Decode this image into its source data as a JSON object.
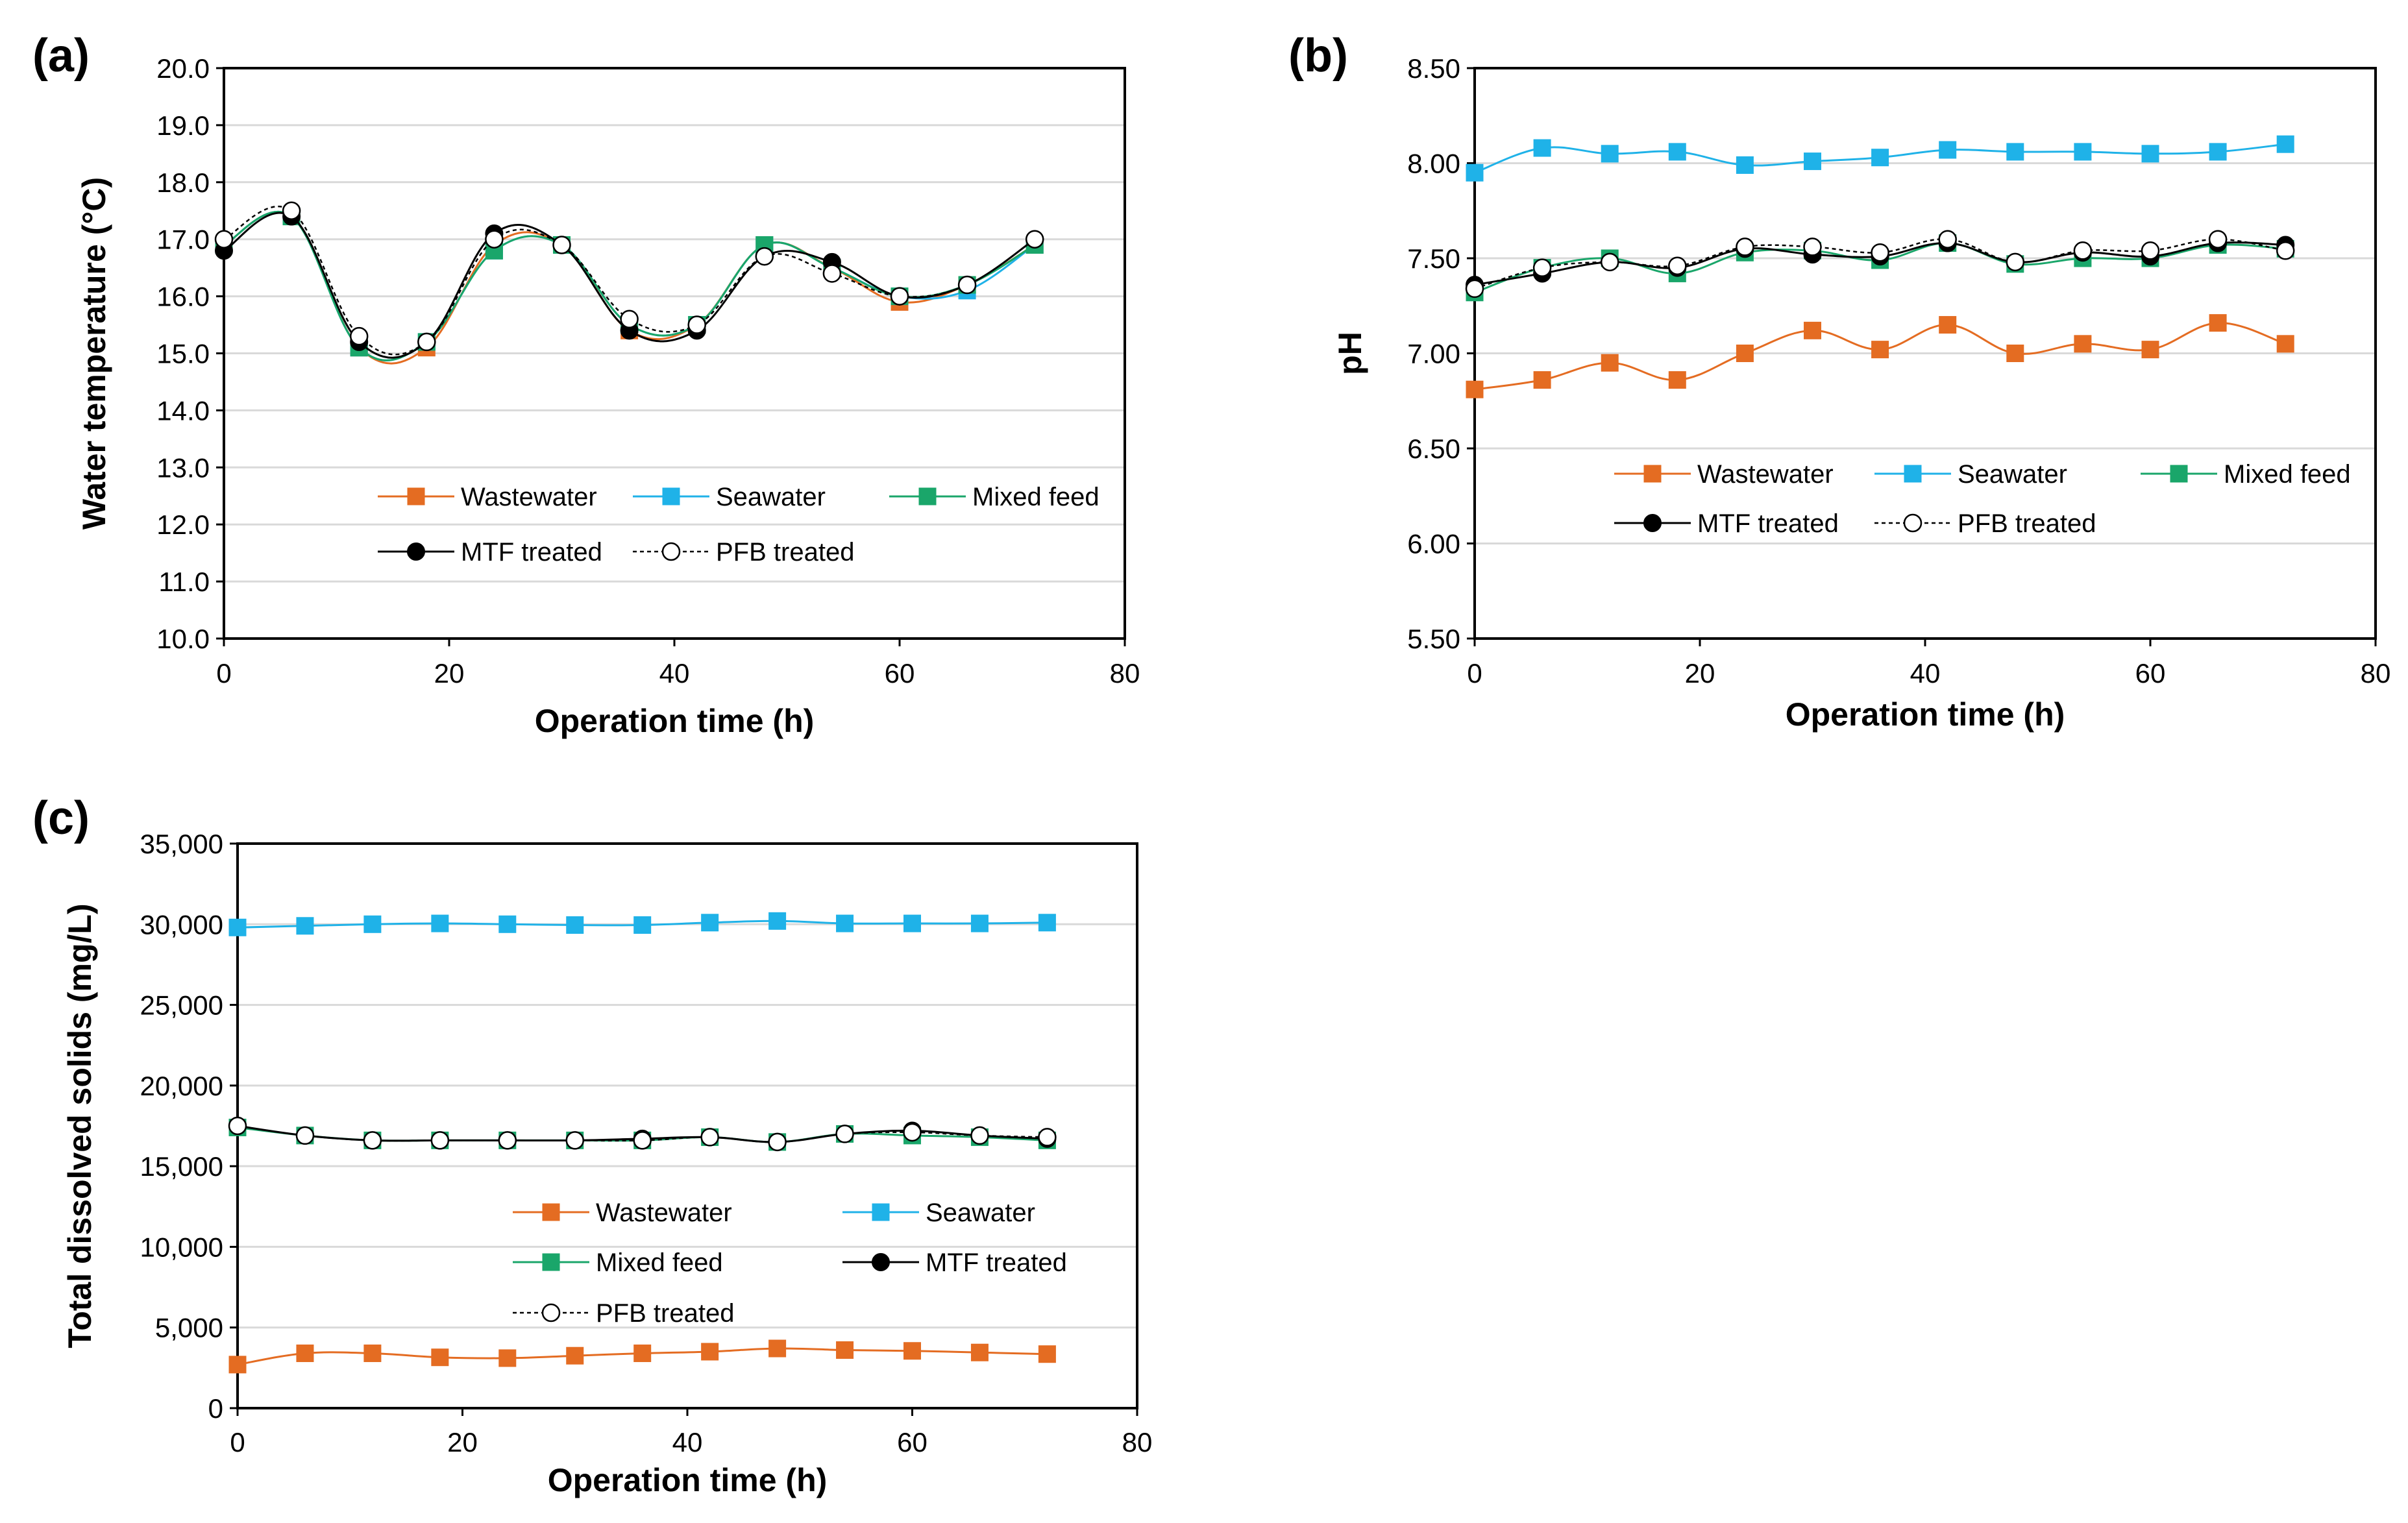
{
  "colors": {
    "wastewater": "#e46c22",
    "seawater": "#1fb2e8",
    "mixed_feed": "#1aa66a",
    "mtf_treated": "#000000",
    "pfb_treated": "#000000"
  },
  "chart_data": [
    {
      "type": "line",
      "panel": "(a)",
      "xlabel": "Operation time (h)",
      "ylabel": "Water temperature (°C)",
      "xlim": [
        0,
        80
      ],
      "ylim": [
        10,
        20
      ],
      "x_tick_labels": [
        "0",
        "20",
        "40",
        "60",
        "80"
      ],
      "y_tick_labels": [
        "10.0",
        "11.0",
        "12.0",
        "13.0",
        "14.0",
        "15.0",
        "16.0",
        "17.0",
        "18.0",
        "19.0",
        "20.0"
      ],
      "legend": [
        "Wastewater",
        "Seawater",
        "Mixed feed",
        "MTF treated",
        "PFB treated"
      ],
      "x": [
        0,
        6,
        12,
        18,
        24,
        30,
        36,
        42,
        48,
        54,
        60,
        66,
        72
      ],
      "series": [
        {
          "name": "Wastewater",
          "values": [
            16.9,
            17.4,
            15.1,
            15.1,
            16.9,
            16.9,
            15.4,
            15.5,
            16.9,
            16.5,
            15.9,
            16.2,
            16.9
          ]
        },
        {
          "name": "Seawater",
          "values": [
            16.9,
            17.4,
            15.1,
            15.2,
            16.8,
            16.9,
            15.5,
            15.5,
            16.9,
            16.5,
            16.0,
            16.1,
            16.9
          ]
        },
        {
          "name": "Mixed feed",
          "values": [
            16.9,
            17.4,
            15.1,
            15.2,
            16.8,
            16.9,
            15.5,
            15.5,
            16.9,
            16.5,
            16.0,
            16.2,
            16.9
          ]
        },
        {
          "name": "MTF treated",
          "values": [
            16.8,
            17.4,
            15.2,
            15.2,
            17.1,
            16.9,
            15.4,
            15.4,
            16.7,
            16.6,
            16.0,
            16.2,
            17.0
          ]
        },
        {
          "name": "PFB treated",
          "values": [
            17.0,
            17.5,
            15.3,
            15.2,
            17.0,
            16.9,
            15.6,
            15.5,
            16.7,
            16.4,
            16.0,
            16.2,
            17.0
          ]
        }
      ]
    },
    {
      "type": "line",
      "panel": "(b)",
      "xlabel": "Operation time (h)",
      "ylabel": "pH",
      "xlim": [
        0,
        80
      ],
      "ylim": [
        5.5,
        8.5
      ],
      "x_tick_labels": [
        "0",
        "20",
        "40",
        "60",
        "80"
      ],
      "y_tick_labels": [
        "5.50",
        "6.00",
        "6.50",
        "7.00",
        "7.50",
        "8.00",
        "8.50"
      ],
      "legend": [
        "Wastewater",
        "Seawater",
        "Mixed feed",
        "MTF treated",
        "PFB treated"
      ],
      "x": [
        0,
        6,
        12,
        18,
        24,
        30,
        36,
        42,
        48,
        54,
        60,
        66,
        72
      ],
      "series": [
        {
          "name": "Wastewater",
          "values": [
            6.81,
            6.86,
            6.95,
            6.86,
            7.0,
            7.12,
            7.02,
            7.15,
            7.0,
            7.05,
            7.02,
            7.16,
            7.05
          ]
        },
        {
          "name": "Seawater",
          "values": [
            7.95,
            8.08,
            8.05,
            8.06,
            7.99,
            8.01,
            8.03,
            8.07,
            8.06,
            8.06,
            8.05,
            8.06,
            8.1
          ]
        },
        {
          "name": "Mixed feed",
          "values": [
            7.32,
            7.45,
            7.5,
            7.42,
            7.53,
            7.54,
            7.49,
            7.58,
            7.47,
            7.5,
            7.5,
            7.57,
            7.55
          ]
        },
        {
          "name": "MTF treated",
          "values": [
            7.36,
            7.42,
            7.48,
            7.45,
            7.55,
            7.52,
            7.51,
            7.58,
            7.48,
            7.53,
            7.51,
            7.58,
            7.57
          ]
        },
        {
          "name": "PFB treated",
          "values": [
            7.34,
            7.45,
            7.48,
            7.46,
            7.56,
            7.56,
            7.53,
            7.6,
            7.48,
            7.54,
            7.54,
            7.6,
            7.54
          ]
        }
      ]
    },
    {
      "type": "line",
      "panel": "(c)",
      "xlabel": "Operation time (h)",
      "ylabel": "Total dissolved solids (mg/L)",
      "xlim": [
        0,
        80
      ],
      "ylim": [
        0,
        35000
      ],
      "x_tick_labels": [
        "0",
        "20",
        "40",
        "60",
        "80"
      ],
      "y_tick_labels": [
        "0",
        "5,000",
        "10,000",
        "15,000",
        "20,000",
        "25,000",
        "30,000",
        "35,000"
      ],
      "legend": [
        "Wastewater",
        "Seawater",
        "Mixed feed",
        "MTF treated",
        "PFB treated"
      ],
      "x": [
        0,
        6,
        12,
        18,
        24,
        30,
        36,
        42,
        48,
        54,
        60,
        66,
        72
      ],
      "series": [
        {
          "name": "Wastewater",
          "values": [
            2700,
            3400,
            3400,
            3150,
            3100,
            3250,
            3400,
            3500,
            3700,
            3600,
            3550,
            3450,
            3350
          ]
        },
        {
          "name": "Seawater",
          "values": [
            29800,
            29900,
            30000,
            30050,
            30000,
            29950,
            29950,
            30100,
            30200,
            30050,
            30050,
            30050,
            30100
          ]
        },
        {
          "name": "Mixed feed",
          "values": [
            17400,
            16900,
            16600,
            16600,
            16600,
            16600,
            16600,
            16800,
            16500,
            17000,
            16900,
            16800,
            16600
          ]
        },
        {
          "name": "MTF treated",
          "values": [
            17500,
            16900,
            16600,
            16600,
            16600,
            16600,
            16700,
            16800,
            16500,
            17000,
            17200,
            16900,
            16700
          ]
        },
        {
          "name": "PFB treated",
          "values": [
            17500,
            16900,
            16600,
            16600,
            16600,
            16600,
            16600,
            16800,
            16500,
            17000,
            17100,
            16900,
            16800
          ]
        }
      ]
    }
  ]
}
